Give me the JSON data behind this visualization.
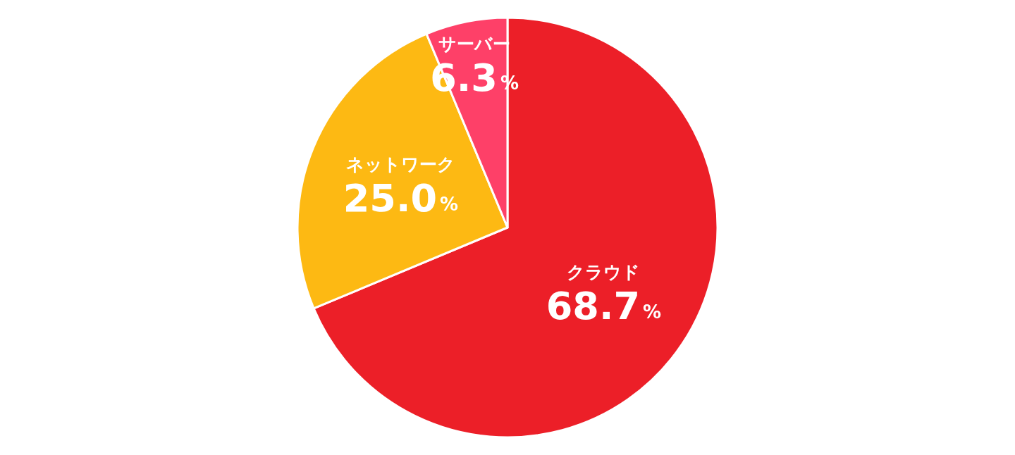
{
  "chart_data": {
    "type": "pie",
    "categories": [
      "クラウド",
      "ネットワーク",
      "サーバー"
    ],
    "values": [
      68.7,
      25.0,
      6.3
    ],
    "colors": [
      "#ec1f28",
      "#fdb913",
      "#fe4068"
    ],
    "value_labels": [
      "68.7%",
      "25.0%",
      "6.3%"
    ],
    "legend": false
  }
}
